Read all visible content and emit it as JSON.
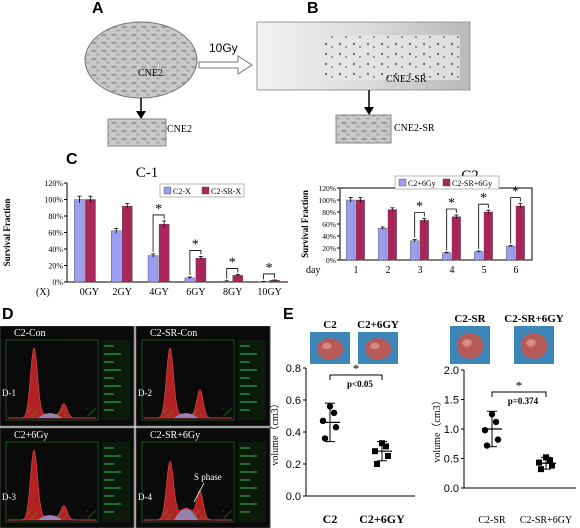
{
  "panels": {
    "A": {
      "letter": "A",
      "cell_label": "CNE2",
      "dose_label": "10Gy",
      "thumb_label": "CNE2"
    },
    "B": {
      "letter": "B",
      "cell_label": "CNE2-SR",
      "thumb_label": "CNE2-SR"
    },
    "C": {
      "letter": "C"
    },
    "D": {
      "letter": "D"
    },
    "E": {
      "letter": "E"
    }
  },
  "chart_data": [
    {
      "id": "C1",
      "type": "bar",
      "title": "C-1",
      "ylabel": "Survival Fraction",
      "x_prefix": "(X)",
      "categories": [
        "0GY",
        "2GY",
        "4GY",
        "6GY",
        "8GY",
        "10GY"
      ],
      "yticks": [
        "0%",
        "20%",
        "40%",
        "60%",
        "80%",
        "100%",
        "120%"
      ],
      "ylim": [
        0,
        120
      ],
      "legend": "top-right",
      "series": [
        {
          "name": "C2-X",
          "color": "#9c9cf0",
          "values": [
            100,
            62,
            32,
            5,
            1,
            0.5
          ],
          "errors": [
            4,
            3,
            2,
            1,
            0.5,
            0.3
          ]
        },
        {
          "name": "C2-SR-X",
          "color": "#a8265a",
          "values": [
            100,
            92,
            70,
            29,
            8,
            2
          ],
          "errors": [
            4,
            3,
            4,
            2,
            1,
            0.5
          ]
        }
      ],
      "significance": [
        "",
        "",
        "*",
        "*",
        "*",
        "*"
      ]
    },
    {
      "id": "C2",
      "type": "bar",
      "title": "C2",
      "ylabel": "Survival Fraction",
      "x_prefix": "day",
      "categories": [
        "1",
        "2",
        "3",
        "4",
        "5",
        "6"
      ],
      "yticks": [
        "0%",
        "20%",
        "40%",
        "60%",
        "80%",
        "100%",
        "120%"
      ],
      "ylim": [
        0,
        120
      ],
      "legend": "top",
      "series": [
        {
          "name": "C2+6Gy",
          "color": "#9c9cf0",
          "values": [
            100,
            53,
            32,
            12,
            14,
            23
          ],
          "errors": [
            4,
            2,
            2,
            1,
            1,
            1
          ]
        },
        {
          "name": "C2-SR+6Gy",
          "color": "#a8265a",
          "values": [
            100,
            84,
            66,
            72,
            80,
            90
          ],
          "errors": [
            4,
            3,
            3,
            3,
            3,
            4
          ]
        }
      ],
      "significance": [
        "",
        "",
        "*",
        "*",
        "*",
        "*"
      ]
    },
    {
      "id": "D",
      "type": "area",
      "panels": [
        {
          "title": "C2-Con",
          "tag": "D-1"
        },
        {
          "title": "C2-SR-Con",
          "tag": "D-2"
        },
        {
          "title": "C2+6Gy",
          "tag": "D-3"
        },
        {
          "title": "C2-SR+6Gy",
          "tag": "D-4",
          "annotation": "S phase"
        }
      ]
    },
    {
      "id": "E1",
      "type": "scatter",
      "ylabel": "volume（cm3）",
      "yticks": [
        "0.0",
        "0.2",
        "0.4",
        "0.6",
        "0.8"
      ],
      "ylim": [
        0,
        0.8
      ],
      "groups": [
        {
          "label": "C2",
          "photo_label": "C2",
          "points": [
            0.36,
            0.43,
            0.47,
            0.52,
            0.56
          ],
          "mean": 0.46,
          "sd": 0.12
        },
        {
          "label": "C2+6GY",
          "photo_label": "C2+6GY",
          "points": [
            0.2,
            0.25,
            0.28,
            0.31,
            0.33
          ],
          "mean": 0.28,
          "sd": 0.06
        }
      ],
      "significance": {
        "star": "*",
        "p_label": "p<0.05"
      }
    },
    {
      "id": "E2",
      "type": "scatter",
      "ylabel": "volume（cm3）",
      "yticks": [
        "0.0",
        "0.5",
        "1.0",
        "1.5",
        "2.0"
      ],
      "ylim": [
        0,
        2.0
      ],
      "groups": [
        {
          "label": "C2-SR",
          "photo_label": "C2-SR",
          "points": [
            0.72,
            0.82,
            0.98,
            1.12,
            1.25
          ],
          "mean": 1.0,
          "sd": 0.3
        },
        {
          "label": "C2-SR+6GY",
          "photo_label": "C2-SR+6GY",
          "points": [
            0.32,
            0.38,
            0.43,
            0.47,
            0.52
          ],
          "mean": 0.42,
          "sd": 0.1
        }
      ],
      "significance": {
        "star": "*",
        "p_label": "p=0.374"
      }
    }
  ]
}
